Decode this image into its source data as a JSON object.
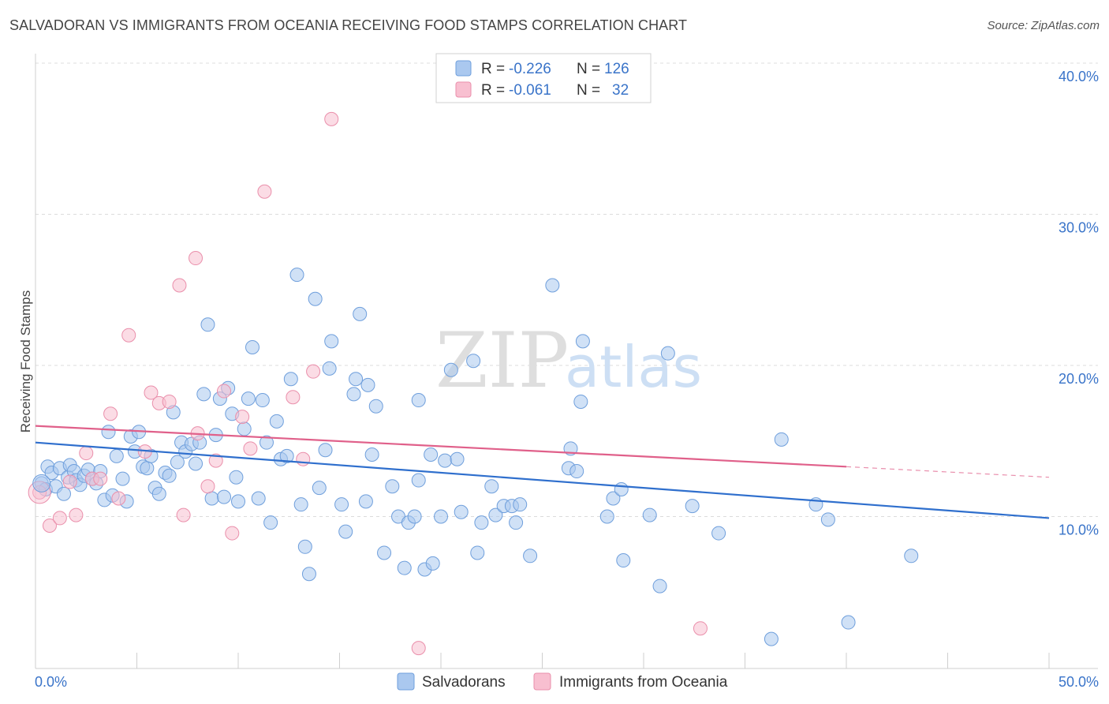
{
  "header": {
    "title": "SALVADORAN VS IMMIGRANTS FROM OCEANIA RECEIVING FOOD STAMPS CORRELATION CHART",
    "source": "Source: ZipAtlas.com"
  },
  "watermark": {
    "zip": "ZIP",
    "atlas": "atlas"
  },
  "legend_box": {
    "rows": [
      {
        "r_label": "R =",
        "r_value": "-0.226",
        "n_label": "N =",
        "n_value": "126",
        "color": "#aac8ef"
      },
      {
        "r_label": "R =",
        "r_value": "-0.061",
        "n_label": "N =",
        "n_value": "32",
        "color": "#f8bfd0"
      }
    ]
  },
  "bottom_legend": [
    {
      "label": "Salvadorans",
      "color": "#aac8ef"
    },
    {
      "label": "Immigrants from Oceania",
      "color": "#f8bfd0"
    }
  ],
  "chart_data": {
    "type": "scatter",
    "ylabel": "Receiving Food Stamps",
    "xlim": [
      0,
      50
    ],
    "ylim": [
      0,
      40
    ],
    "x_tick_labels": [
      {
        "value": 0,
        "label": "0.0%"
      },
      {
        "value": 50,
        "label": "50.0%"
      }
    ],
    "y_tick_labels": [
      {
        "value": 10,
        "label": "10.0%"
      },
      {
        "value": 20,
        "label": "20.0%"
      },
      {
        "value": 30,
        "label": "30.0%"
      },
      {
        "value": 40,
        "label": "40.0%"
      }
    ],
    "grid": "horizontal dashed",
    "series": [
      {
        "name": "Salvadorans",
        "color": "#6f9fdc",
        "fill": "#aac8ef",
        "trend": {
          "x0": 0,
          "y0": 14.9,
          "x1": 50,
          "y1": 9.9,
          "style": "solid",
          "line_color": "#2f6fcd"
        },
        "points": [
          [
            0.3,
            12.2
          ],
          [
            0.5,
            11.8
          ],
          [
            0.6,
            13.3
          ],
          [
            0.8,
            12.9
          ],
          [
            1.0,
            12.0
          ],
          [
            1.2,
            13.2
          ],
          [
            1.4,
            11.5
          ],
          [
            1.6,
            12.6
          ],
          [
            1.7,
            13.4
          ],
          [
            1.9,
            13.0
          ],
          [
            2.0,
            12.4
          ],
          [
            2.2,
            12.1
          ],
          [
            2.4,
            12.7
          ],
          [
            2.6,
            13.1
          ],
          [
            2.8,
            12.5
          ],
          [
            3.0,
            12.2
          ],
          [
            3.2,
            13.0
          ],
          [
            3.4,
            11.1
          ],
          [
            3.6,
            15.6
          ],
          [
            3.8,
            11.4
          ],
          [
            4.0,
            14.0
          ],
          [
            4.3,
            12.5
          ],
          [
            4.5,
            11.0
          ],
          [
            4.7,
            15.3
          ],
          [
            4.9,
            14.3
          ],
          [
            5.1,
            15.6
          ],
          [
            5.3,
            13.3
          ],
          [
            5.5,
            13.2
          ],
          [
            5.7,
            14.0
          ],
          [
            5.9,
            11.9
          ],
          [
            6.1,
            11.5
          ],
          [
            6.4,
            12.9
          ],
          [
            6.6,
            12.7
          ],
          [
            6.8,
            16.9
          ],
          [
            7.0,
            13.6
          ],
          [
            7.2,
            14.9
          ],
          [
            7.4,
            14.3
          ],
          [
            7.7,
            14.8
          ],
          [
            7.9,
            13.5
          ],
          [
            8.1,
            14.9
          ],
          [
            8.3,
            18.1
          ],
          [
            8.5,
            22.7
          ],
          [
            8.7,
            11.2
          ],
          [
            8.9,
            15.4
          ],
          [
            9.1,
            17.8
          ],
          [
            9.3,
            11.3
          ],
          [
            9.5,
            18.5
          ],
          [
            9.7,
            16.8
          ],
          [
            9.9,
            12.6
          ],
          [
            10.0,
            11.0
          ],
          [
            10.3,
            15.8
          ],
          [
            10.5,
            17.8
          ],
          [
            10.7,
            21.2
          ],
          [
            11.0,
            11.2
          ],
          [
            11.2,
            17.7
          ],
          [
            11.4,
            14.9
          ],
          [
            11.6,
            9.6
          ],
          [
            11.9,
            16.3
          ],
          [
            12.1,
            13.8
          ],
          [
            12.4,
            14.0
          ],
          [
            12.6,
            19.1
          ],
          [
            12.9,
            26.0
          ],
          [
            13.1,
            10.8
          ],
          [
            13.3,
            8.0
          ],
          [
            13.5,
            6.2
          ],
          [
            13.8,
            24.4
          ],
          [
            14.0,
            11.9
          ],
          [
            14.3,
            14.4
          ],
          [
            14.5,
            19.8
          ],
          [
            14.6,
            21.6
          ],
          [
            15.1,
            10.8
          ],
          [
            15.3,
            9.0
          ],
          [
            15.7,
            18.1
          ],
          [
            15.8,
            19.1
          ],
          [
            16.0,
            23.4
          ],
          [
            16.3,
            11.0
          ],
          [
            16.4,
            18.7
          ],
          [
            16.6,
            14.1
          ],
          [
            16.8,
            17.3
          ],
          [
            17.2,
            7.6
          ],
          [
            17.6,
            12.0
          ],
          [
            17.9,
            10.0
          ],
          [
            18.2,
            6.6
          ],
          [
            18.4,
            9.6
          ],
          [
            18.7,
            10.0
          ],
          [
            18.9,
            12.4
          ],
          [
            18.9,
            17.7
          ],
          [
            19.2,
            6.5
          ],
          [
            19.5,
            14.1
          ],
          [
            19.6,
            6.9
          ],
          [
            20.0,
            10.0
          ],
          [
            20.2,
            13.7
          ],
          [
            20.5,
            19.7
          ],
          [
            20.8,
            13.8
          ],
          [
            21.0,
            10.3
          ],
          [
            21.6,
            20.3
          ],
          [
            21.8,
            7.6
          ],
          [
            22.0,
            9.6
          ],
          [
            22.5,
            12.0
          ],
          [
            22.7,
            10.1
          ],
          [
            23.1,
            10.7
          ],
          [
            23.5,
            10.7
          ],
          [
            23.7,
            9.6
          ],
          [
            23.9,
            10.8
          ],
          [
            24.4,
            7.4
          ],
          [
            25.5,
            25.3
          ],
          [
            26.3,
            13.2
          ],
          [
            26.4,
            14.5
          ],
          [
            26.7,
            13.0
          ],
          [
            27.0,
            21.6
          ],
          [
            26.9,
            17.6
          ],
          [
            28.2,
            10.0
          ],
          [
            28.5,
            11.2
          ],
          [
            28.9,
            11.8
          ],
          [
            29.0,
            7.1
          ],
          [
            30.3,
            10.1
          ],
          [
            30.8,
            5.4
          ],
          [
            31.2,
            20.8
          ],
          [
            32.4,
            10.7
          ],
          [
            33.7,
            8.9
          ],
          [
            36.3,
            1.9
          ],
          [
            36.8,
            15.1
          ],
          [
            38.5,
            10.8
          ],
          [
            39.1,
            9.8
          ],
          [
            40.1,
            3.0
          ],
          [
            43.2,
            7.4
          ]
        ]
      },
      {
        "name": "Immigrants from Oceania",
        "color": "#ea8fab",
        "fill": "#f8bfd0",
        "trend": {
          "x0": 0,
          "y0": 16.0,
          "x1": 40,
          "y1": 13.3,
          "style": "solid",
          "line_color": "#e0608a",
          "extension": {
            "x0": 40,
            "y0": 13.3,
            "x1": 50,
            "y1": 12.6,
            "style": "dashed"
          }
        },
        "points": [
          [
            0.2,
            11.6
          ],
          [
            0.7,
            9.4
          ],
          [
            1.2,
            9.9
          ],
          [
            1.7,
            12.3
          ],
          [
            2.0,
            10.1
          ],
          [
            2.5,
            14.2
          ],
          [
            2.8,
            12.5
          ],
          [
            3.2,
            12.5
          ],
          [
            3.7,
            16.8
          ],
          [
            4.1,
            11.2
          ],
          [
            4.6,
            22.0
          ],
          [
            5.4,
            14.3
          ],
          [
            5.7,
            18.2
          ],
          [
            6.1,
            17.5
          ],
          [
            6.6,
            17.6
          ],
          [
            7.1,
            25.3
          ],
          [
            7.3,
            10.1
          ],
          [
            7.9,
            27.1
          ],
          [
            8.0,
            15.5
          ],
          [
            8.5,
            12.0
          ],
          [
            8.9,
            13.7
          ],
          [
            9.3,
            18.3
          ],
          [
            9.7,
            8.9
          ],
          [
            10.2,
            16.6
          ],
          [
            10.6,
            14.5
          ],
          [
            11.3,
            31.5
          ],
          [
            12.7,
            17.9
          ],
          [
            13.2,
            13.8
          ],
          [
            13.7,
            19.6
          ],
          [
            14.6,
            36.3
          ],
          [
            18.9,
            1.3
          ],
          [
            32.8,
            2.6
          ]
        ]
      }
    ]
  }
}
